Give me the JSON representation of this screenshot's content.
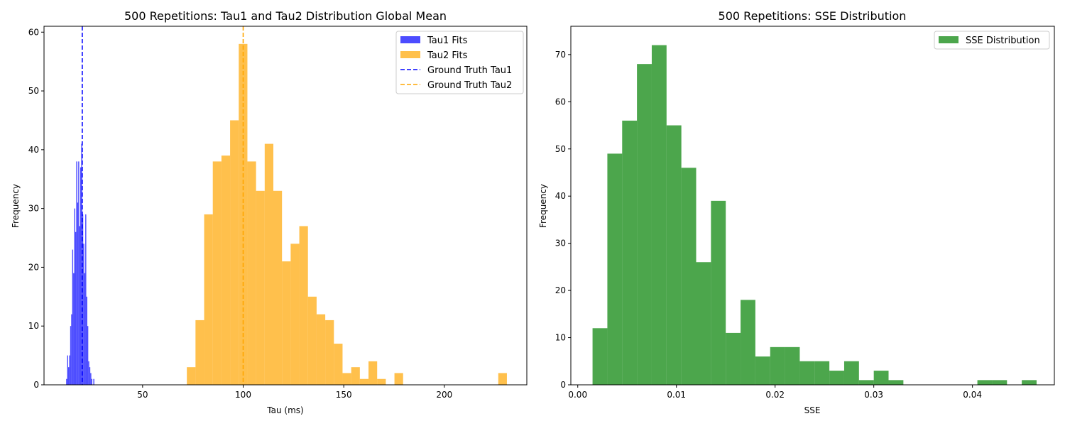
{
  "chart_data": [
    {
      "type": "histogram",
      "title": "500 Repetitions: Tau1 and Tau2 Distribution Global Mean",
      "xlabel": "Tau (ms)",
      "ylabel": "Frequency",
      "xlim": [
        1,
        241
      ],
      "ylim": [
        0,
        61
      ],
      "xticks": [
        50,
        100,
        150,
        200
      ],
      "yticks": [
        0,
        10,
        20,
        30,
        40,
        50,
        60
      ],
      "legend_position": "top-right",
      "series": [
        {
          "name": "Tau1 Fits",
          "kind": "bars",
          "color": "#0000ff",
          "bin_start": 12,
          "bin_width": 0.5,
          "counts": [
            1,
            5,
            3,
            5,
            10,
            12,
            23,
            19,
            30,
            26,
            38,
            31,
            38,
            27,
            37,
            41,
            29,
            24,
            19,
            29,
            15,
            10,
            4,
            3,
            2,
            1,
            0,
            1
          ]
        },
        {
          "name": "Tau2 Fits",
          "kind": "bars",
          "color": "#ffa500",
          "bin_start": 72,
          "bin_width": 4.3,
          "counts": [
            3,
            11,
            29,
            38,
            39,
            45,
            58,
            38,
            33,
            41,
            33,
            21,
            24,
            27,
            15,
            12,
            11,
            7,
            2,
            3,
            1,
            4,
            1,
            0,
            2,
            0,
            0,
            0,
            0,
            0,
            0,
            0,
            0,
            0,
            0,
            0,
            2
          ]
        },
        {
          "name": "Ground Truth Tau1",
          "kind": "vline",
          "color": "#0000ff",
          "x": 20
        },
        {
          "name": "Ground Truth Tau2",
          "kind": "vline",
          "color": "#ffa500",
          "x": 100
        }
      ]
    },
    {
      "type": "histogram",
      "title": "500 Repetitions: SSE Distribution",
      "xlabel": "SSE",
      "ylabel": "Frequency",
      "xlim": [
        -0.0007,
        0.0483
      ],
      "ylim": [
        0,
        76
      ],
      "xticks": [
        0.0,
        0.01,
        0.02,
        0.03,
        0.04
      ],
      "xtick_labels": [
        "0.00",
        "0.01",
        "0.02",
        "0.03",
        "0.04"
      ],
      "yticks": [
        0,
        10,
        20,
        30,
        40,
        50,
        60,
        70
      ],
      "legend_position": "top-right",
      "series": [
        {
          "name": "SSE Distribution",
          "kind": "bars",
          "color": "#008000",
          "bin_start": 0.0015,
          "bin_width": 0.0015,
          "counts": [
            12,
            49,
            56,
            68,
            72,
            55,
            46,
            26,
            39,
            11,
            18,
            6,
            8,
            8,
            5,
            5,
            3,
            5,
            1,
            3,
            1,
            0,
            0,
            0,
            0,
            0,
            1,
            1,
            0,
            1
          ]
        }
      ]
    }
  ]
}
